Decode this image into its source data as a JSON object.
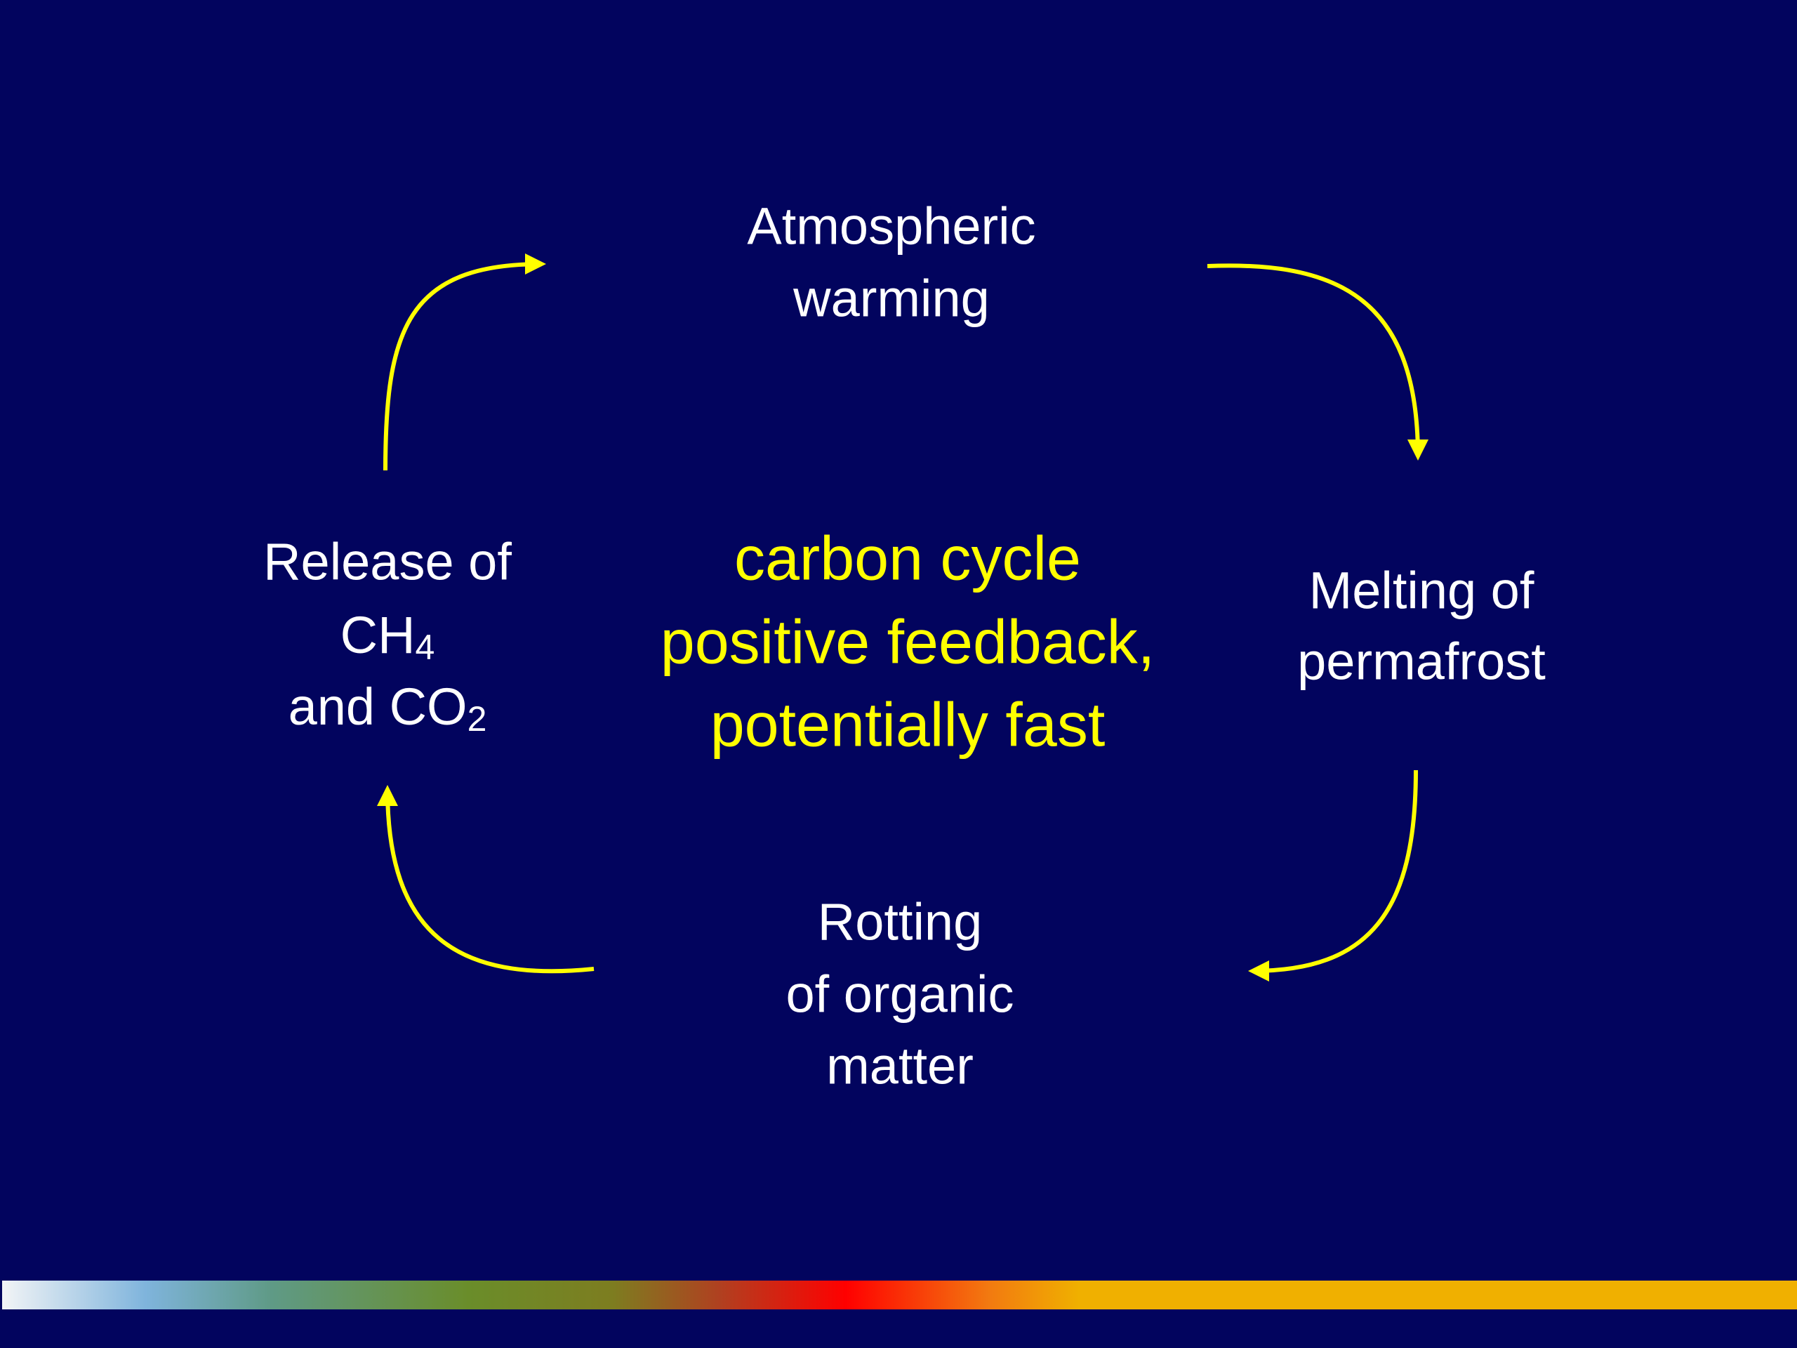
{
  "nodes": [
    {
      "lines": [
        "Atmospheric",
        "warming"
      ]
    },
    {
      "lines": [
        "Melting of",
        "permafrost"
      ]
    },
    {
      "lines": [
        "Rotting",
        "of organic",
        "matter"
      ]
    },
    {
      "line1": "Release of",
      "line2": "CH",
      "line2_sub": "4",
      "line3": "and CO",
      "line3_sub": "2"
    }
  ],
  "center": {
    "lines": [
      "carbon cycle",
      "positive feedback,",
      "potentially fast"
    ]
  }
}
